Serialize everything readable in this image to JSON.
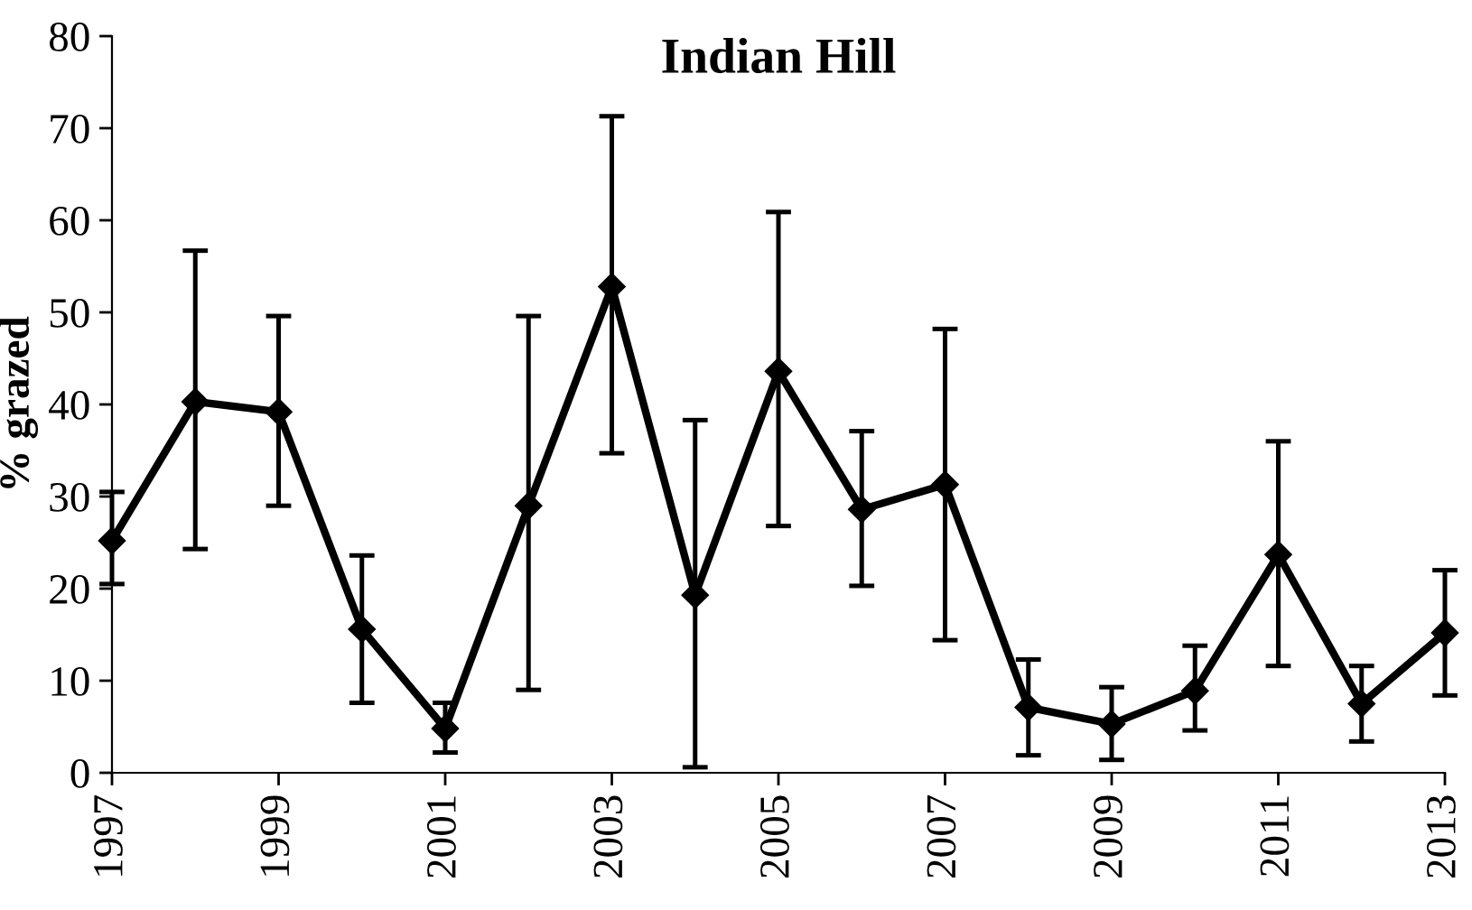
{
  "chart_data": {
    "type": "line",
    "title": "Indian Hill",
    "ylabel": "% grazed",
    "x": [
      1997,
      1998,
      1999,
      2000,
      2001,
      2002,
      2003,
      2004,
      2005,
      2006,
      2007,
      2008,
      2009,
      2010,
      2011,
      2012,
      2013
    ],
    "series": [
      {
        "color": "#000000",
        "values": [
          25.2,
          40.3,
          39.2,
          15.6,
          4.8,
          29.0,
          52.8,
          19.3,
          43.6,
          28.6,
          31.3,
          7.1,
          5.3,
          8.9,
          23.7,
          7.5,
          15.2
        ],
        "errors": [
          [
            20.5,
            30.5
          ],
          [
            24.3,
            56.7
          ],
          [
            29.0,
            49.6
          ],
          [
            7.6,
            23.6
          ],
          [
            2.2,
            7.6
          ],
          [
            9.0,
            49.6
          ],
          [
            34.7,
            71.3
          ],
          [
            0.6,
            38.3
          ],
          [
            26.8,
            60.9
          ],
          [
            20.3,
            37.1
          ],
          [
            14.4,
            48.2
          ],
          [
            1.9,
            12.3
          ],
          [
            1.4,
            9.3
          ],
          [
            4.6,
            13.8
          ],
          [
            11.6,
            36.0
          ],
          [
            3.4,
            11.6
          ],
          [
            8.4,
            22.0
          ]
        ]
      }
    ],
    "xlim": [
      1997,
      2013
    ],
    "xticks": [
      1997,
      1999,
      2001,
      2003,
      2005,
      2007,
      2009,
      2011,
      2013
    ],
    "ylim": [
      0,
      80
    ],
    "yticks": [
      0,
      10,
      20,
      30,
      40,
      50,
      60,
      70,
      80
    ],
    "grid": false,
    "legend": false,
    "marker": "diamond",
    "line_style": "solid"
  }
}
